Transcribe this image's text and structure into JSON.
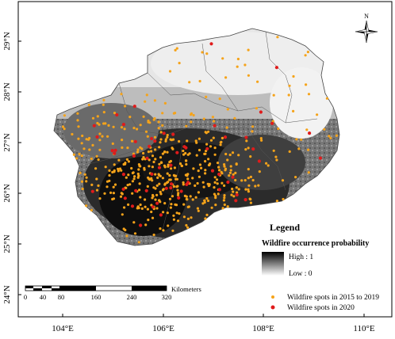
{
  "map": {
    "north_label": "N",
    "lat_labels": [
      "29°N",
      "28°N",
      "27°N",
      "26°N",
      "25°N",
      "24°N"
    ],
    "lon_labels": [
      "104°E",
      "106°E",
      "108°E",
      "110°E"
    ],
    "colors": {
      "frame": "#000000",
      "orange_spot": "#f5a31a",
      "red_spot": "#e01b1b",
      "high": "#000000",
      "low": "#ffffff"
    }
  },
  "legend": {
    "title": "Legend",
    "prob_title": "Wildfire occurrence probability",
    "high_label": "High : 1",
    "low_label": "Low : 0",
    "series": [
      {
        "label": "Wildfire spots in 2015 to 2019",
        "color": "#f5a31a"
      },
      {
        "label": "Wildfire spots in 2020",
        "color": "#e01b1b"
      }
    ]
  },
  "scalebar": {
    "unit": "Kilometers",
    "ticks": [
      "0",
      "40",
      "80",
      "160",
      "240",
      "320"
    ]
  }
}
